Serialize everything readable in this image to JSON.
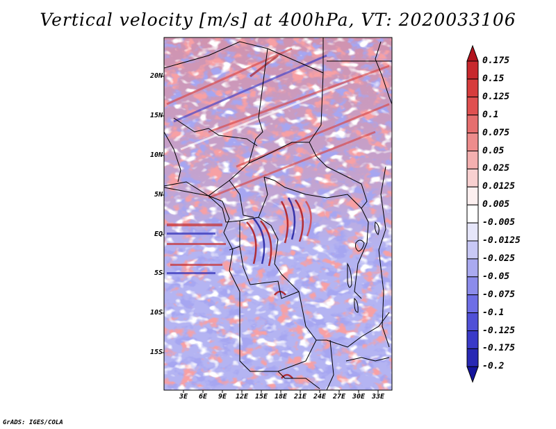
{
  "title": "Vertical velocity [m/s] at 400hPa, VT: 2020033106",
  "credit": "GrADS: IGES/COLA",
  "map": {
    "lat_labels": [
      "20N",
      "15N",
      "10N",
      "5N",
      "EQ",
      "5S",
      "10S",
      "15S"
    ],
    "lon_labels": [
      "3E",
      "6E",
      "9E",
      "12E",
      "15E",
      "18E",
      "21E",
      "24E",
      "27E",
      "30E",
      "33E"
    ]
  },
  "colorbar": {
    "levels": [
      "0.175",
      "0.15",
      "0.125",
      "0.1",
      "0.075",
      "0.05",
      "0.025",
      "0.0125",
      "0.005",
      "-0.005",
      "-0.0125",
      "-0.025",
      "-0.05",
      "-0.075",
      "-0.1",
      "-0.125",
      "-0.175",
      "-0.2"
    ],
    "colors": [
      "#b2141e",
      "#c8282d",
      "#d73c3c",
      "#e05050",
      "#e66e6e",
      "#ed8c8c",
      "#f4b0b0",
      "#f8d0d0",
      "#fdf0f0",
      "#ffffff",
      "#e6e6fa",
      "#c8c8f5",
      "#aaaaf0",
      "#8c8ceb",
      "#6e6ee6",
      "#5050d7",
      "#3a3ac8",
      "#2828b4",
      "#14149c"
    ]
  }
}
